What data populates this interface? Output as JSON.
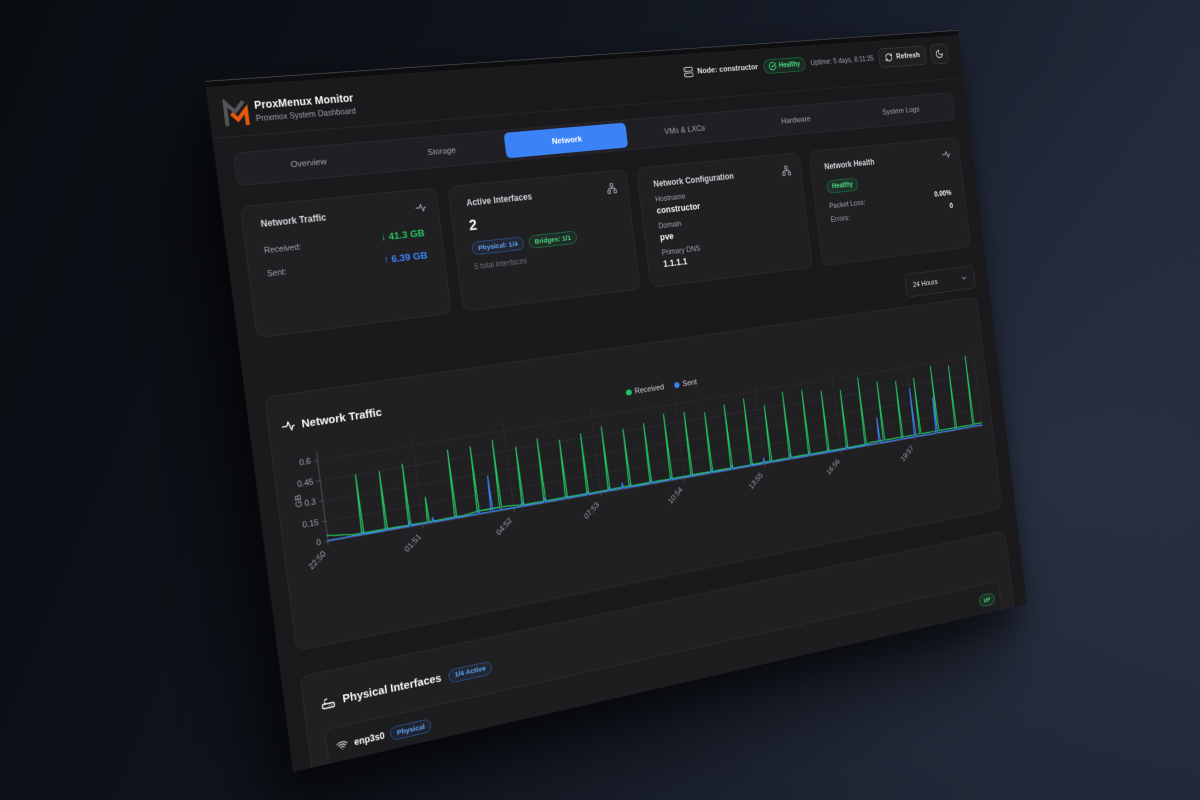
{
  "header": {
    "app_title": "ProxMenux Monitor",
    "subtitle": "Proxmox System Dashboard",
    "node_label": "Node: constructor",
    "health_badge": "Healthy",
    "uptime": "Uptime: 5 days, 6:11:25",
    "refresh_label": "Refresh"
  },
  "tabs": {
    "items": [
      {
        "label": "Overview",
        "active": false
      },
      {
        "label": "Storage",
        "active": false
      },
      {
        "label": "Network",
        "active": true
      },
      {
        "label": "VMs & LXCs",
        "active": false
      },
      {
        "label": "Hardware",
        "active": false
      },
      {
        "label": "System Logs",
        "active": false
      }
    ]
  },
  "cards": {
    "traffic": {
      "title": "Network Traffic",
      "received_label": "Received:",
      "received_value": "41.3 GB",
      "sent_label": "Sent:",
      "sent_value": "6.39 GB"
    },
    "interfaces": {
      "title": "Active Interfaces",
      "count": "2",
      "badges": [
        {
          "label": "Physical: 1/4",
          "color": "blue"
        },
        {
          "label": "Bridges: 1/1",
          "color": "green"
        }
      ],
      "total": "5 total interfaces"
    },
    "config": {
      "title": "Network Configuration",
      "fields": [
        {
          "label": "Hostname",
          "value": "constructor"
        },
        {
          "label": "Domain",
          "value": "pve"
        },
        {
          "label": "Primary DNS",
          "value": "1.1.1.1"
        }
      ]
    },
    "health": {
      "title": "Network Health",
      "status": "Healthy",
      "rows": [
        {
          "label": "Packet Loss:",
          "value": "0.00%"
        },
        {
          "label": "Errors:",
          "value": "0"
        }
      ]
    }
  },
  "toolbar": {
    "range": "24 Hours"
  },
  "chart_data": {
    "type": "line",
    "title": "Network Traffic",
    "ylabel": "GB",
    "yticks": [
      0,
      0.15,
      0.3,
      0.45,
      0.6
    ],
    "ylim": [
      0,
      0.66
    ],
    "xlim": [
      0,
      1438
    ],
    "xtick_minutes": [
      0,
      181,
      362,
      543,
      724,
      905,
      1086,
      1267
    ],
    "xtick_labels": [
      "22:50",
      "01:51",
      "04:52",
      "07:53",
      "10:54",
      "13:55",
      "16:56",
      "19:57"
    ],
    "grid": "dashed",
    "legend_position": "top",
    "series": [
      {
        "name": "Received",
        "color": "#22c55e",
        "points": [
          [
            0,
            0.044
          ],
          [
            16,
            0.034
          ],
          [
            32,
            0.027
          ],
          [
            48,
            0.016
          ],
          [
            64,
            0.015
          ],
          [
            66,
            0.45
          ],
          [
            68,
            0.016
          ],
          [
            82,
            0.015
          ],
          [
            109,
            0.016
          ],
          [
            111,
            0.447
          ],
          [
            113,
            0.015
          ],
          [
            127,
            0.016
          ],
          [
            154,
            0.013
          ],
          [
            156,
            0.474
          ],
          [
            158,
            0.014
          ],
          [
            172,
            0.014
          ],
          [
            190,
            0.013
          ],
          [
            192,
            0.2
          ],
          [
            194,
            0.014
          ],
          [
            208,
            0.013
          ],
          [
            224,
            0.014
          ],
          [
            244,
            0.016
          ],
          [
            246,
            0.523
          ],
          [
            248,
            0.014
          ],
          [
            262,
            0.014
          ],
          [
            289,
            0.026
          ],
          [
            291,
            0.519
          ],
          [
            293,
            0.026
          ],
          [
            307,
            0.029
          ],
          [
            334,
            0.028
          ],
          [
            336,
            0.543
          ],
          [
            338,
            0.027
          ],
          [
            352,
            0.026
          ],
          [
            379,
            0.016
          ],
          [
            381,
            0.464
          ],
          [
            383,
            0.014
          ],
          [
            397,
            0.015
          ],
          [
            424,
            0.017
          ],
          [
            426,
            0.499
          ],
          [
            428,
            0.016
          ],
          [
            442,
            0.015
          ],
          [
            469,
            0.016
          ],
          [
            471,
            0.462
          ],
          [
            473,
            0.016
          ],
          [
            487,
            0.016
          ],
          [
            514,
            0.014
          ],
          [
            516,
            0.483
          ],
          [
            518,
            0.013
          ],
          [
            532,
            0.014
          ],
          [
            559,
            0.014
          ],
          [
            561,
            0.513
          ],
          [
            563,
            0.014
          ],
          [
            577,
            0.017
          ],
          [
            604,
            0.017
          ],
          [
            606,
            0.467
          ],
          [
            608,
            0.014
          ],
          [
            622,
            0.016
          ],
          [
            649,
            0.015
          ],
          [
            651,
            0.486
          ],
          [
            653,
            0.017
          ],
          [
            667,
            0.015
          ],
          [
            694,
            0.014
          ],
          [
            696,
            0.533
          ],
          [
            698,
            0.014
          ],
          [
            712,
            0.015
          ],
          [
            739,
            0.014
          ],
          [
            741,
            0.524
          ],
          [
            743,
            0.015
          ],
          [
            757,
            0.017
          ],
          [
            784,
            0.015
          ],
          [
            786,
            0.493
          ],
          [
            788,
            0.014
          ],
          [
            802,
            0.017
          ],
          [
            829,
            0.015
          ],
          [
            831,
            0.532
          ],
          [
            833,
            0.013
          ],
          [
            847,
            0.013
          ],
          [
            874,
            0.013
          ],
          [
            876,
            0.556
          ],
          [
            878,
            0.016
          ],
          [
            892,
            0.016
          ],
          [
            919,
            0.015
          ],
          [
            921,
            0.477
          ],
          [
            923,
            0.013
          ],
          [
            937,
            0.015
          ],
          [
            964,
            0.017
          ],
          [
            966,
            0.559
          ],
          [
            968,
            0.015
          ],
          [
            982,
            0.017
          ],
          [
            1009,
            0.016
          ],
          [
            1011,
            0.55
          ],
          [
            1013,
            0.013
          ],
          [
            1027,
            0.016
          ],
          [
            1054,
            0.016
          ],
          [
            1056,
            0.516
          ],
          [
            1058,
            0.015
          ],
          [
            1072,
            0.014
          ],
          [
            1099,
            0.016
          ],
          [
            1101,
            0.5
          ],
          [
            1103,
            0.013
          ],
          [
            1117,
            0.015
          ],
          [
            1144,
            0.015
          ],
          [
            1146,
            0.582
          ],
          [
            1148,
            0.017
          ],
          [
            1162,
            0.025
          ],
          [
            1189,
            0.022
          ],
          [
            1191,
            0.521
          ],
          [
            1193,
            0.023
          ],
          [
            1207,
            0.022
          ],
          [
            1234,
            0.025
          ],
          [
            1236,
            0.499
          ],
          [
            1238,
            0.024
          ],
          [
            1252,
            0.022
          ],
          [
            1279,
            0.024
          ],
          [
            1281,
            0.501
          ],
          [
            1283,
            0.023
          ],
          [
            1297,
            0.022
          ],
          [
            1324,
            0.024
          ],
          [
            1326,
            0.578
          ],
          [
            1328,
            0.023
          ],
          [
            1342,
            0.024
          ],
          [
            1369,
            0.023
          ],
          [
            1371,
            0.555
          ],
          [
            1373,
            0.021
          ],
          [
            1387,
            0.022
          ],
          [
            1414,
            0.021
          ],
          [
            1416,
            0.62
          ],
          [
            1418,
            0.025
          ],
          [
            1432,
            0.025
          ],
          [
            1438,
            0.024
          ]
        ]
      },
      {
        "name": "Sent",
        "color": "#3b82f6",
        "points": [
          [
            0,
            0.006
          ],
          [
            16,
            0.005
          ],
          [
            32,
            0.007
          ],
          [
            48,
            0.007
          ],
          [
            64,
            0.005
          ],
          [
            66,
            0.026
          ],
          [
            68,
            0.005
          ],
          [
            82,
            0.006
          ],
          [
            109,
            0.005
          ],
          [
            111,
            0.021
          ],
          [
            113,
            0.005
          ],
          [
            127,
            0.007
          ],
          [
            154,
            0.006
          ],
          [
            156,
            0.038
          ],
          [
            158,
            0.006
          ],
          [
            172,
            0.007
          ],
          [
            199,
            0.007
          ],
          [
            201,
            0.039
          ],
          [
            203,
            0.005
          ],
          [
            217,
            0.005
          ],
          [
            244,
            0.006
          ],
          [
            246,
            0.022
          ],
          [
            248,
            0.006
          ],
          [
            262,
            0.006
          ],
          [
            289,
            0.006
          ],
          [
            291,
            0.03
          ],
          [
            293,
            0.006
          ],
          [
            316,
            0.007
          ],
          [
            318,
            0.28
          ],
          [
            320,
            0.005
          ],
          [
            334,
            0.006
          ],
          [
            336,
            0.021
          ],
          [
            338,
            0.006
          ],
          [
            352,
            0.007
          ],
          [
            379,
            0.005
          ],
          [
            381,
            0.035
          ],
          [
            383,
            0.005
          ],
          [
            397,
            0.006
          ],
          [
            424,
            0.006
          ],
          [
            426,
            0.035
          ],
          [
            428,
            0.006
          ],
          [
            442,
            0.005
          ],
          [
            469,
            0.007
          ],
          [
            471,
            0.023
          ],
          [
            473,
            0.006
          ],
          [
            487,
            0.007
          ],
          [
            514,
            0.006
          ],
          [
            516,
            0.03
          ],
          [
            518,
            0.005
          ],
          [
            532,
            0.007
          ],
          [
            559,
            0.007
          ],
          [
            561,
            0.031
          ],
          [
            563,
            0.007
          ],
          [
            588,
            0.007
          ],
          [
            590,
            0.05
          ],
          [
            592,
            0.007
          ],
          [
            604,
            0.005
          ],
          [
            606,
            0.025
          ],
          [
            608,
            0.006
          ],
          [
            622,
            0.005
          ],
          [
            649,
            0.006
          ],
          [
            651,
            0.037
          ],
          [
            653,
            0.005
          ],
          [
            667,
            0.006
          ],
          [
            694,
            0.007
          ],
          [
            696,
            0.028
          ],
          [
            698,
            0.006
          ],
          [
            712,
            0.007
          ],
          [
            739,
            0.006
          ],
          [
            741,
            0.024
          ],
          [
            743,
            0.006
          ],
          [
            757,
            0.007
          ],
          [
            784,
            0.007
          ],
          [
            786,
            0.031
          ],
          [
            788,
            0.006
          ],
          [
            802,
            0.006
          ],
          [
            829,
            0.005
          ],
          [
            831,
            0.035
          ],
          [
            833,
            0.006
          ],
          [
            847,
            0.007
          ],
          [
            874,
            0.006
          ],
          [
            876,
            0.024
          ],
          [
            878,
            0.006
          ],
          [
            903,
            0.006
          ],
          [
            905,
            0.05
          ],
          [
            907,
            0.005
          ],
          [
            919,
            0.006
          ],
          [
            921,
            0.026
          ],
          [
            923,
            0.006
          ],
          [
            937,
            0.007
          ],
          [
            964,
            0.005
          ],
          [
            966,
            0.04
          ],
          [
            968,
            0.007
          ],
          [
            982,
            0.005
          ],
          [
            1009,
            0.005
          ],
          [
            1011,
            0.033
          ],
          [
            1013,
            0.006
          ],
          [
            1027,
            0.006
          ],
          [
            1054,
            0.005
          ],
          [
            1056,
            0.029
          ],
          [
            1058,
            0.005
          ],
          [
            1072,
            0.007
          ],
          [
            1099,
            0.005
          ],
          [
            1101,
            0.03
          ],
          [
            1103,
            0.006
          ],
          [
            1117,
            0.006
          ],
          [
            1144,
            0.006
          ],
          [
            1146,
            0.022
          ],
          [
            1148,
            0.006
          ],
          [
            1162,
            0.006
          ],
          [
            1178,
            0.007
          ],
          [
            1180,
            0.22
          ],
          [
            1182,
            0.005
          ],
          [
            1196,
            0.006
          ],
          [
            1212,
            0.005
          ],
          [
            1234,
            0.006
          ],
          [
            1236,
            0.027
          ],
          [
            1238,
            0.006
          ],
          [
            1266,
            0.006
          ],
          [
            1268,
            0.42
          ],
          [
            1270,
            0.006
          ],
          [
            1284,
            0.007
          ],
          [
            1300,
            0.005
          ],
          [
            1320,
            0.006
          ],
          [
            1322,
            0.31
          ],
          [
            1324,
            0.007
          ],
          [
            1338,
            0.007
          ],
          [
            1354,
            0.005
          ],
          [
            1369,
            0.005
          ],
          [
            1371,
            0.024
          ],
          [
            1373,
            0.006
          ],
          [
            1387,
            0.007
          ],
          [
            1414,
            0.007
          ],
          [
            1416,
            0.021
          ],
          [
            1418,
            0.007
          ],
          [
            1432,
            0.006
          ],
          [
            1438,
            0.005
          ]
        ]
      }
    ]
  },
  "physical": {
    "title": "Physical Interfaces",
    "active_badge": "1/4 Active",
    "rows": [
      {
        "name": "enp3s0",
        "type_badge": "Physical",
        "status": "UP"
      }
    ]
  },
  "colors": {
    "accent_blue": "#3b82f6",
    "green": "#22c55e",
    "bg_panel": "#1a1a1d",
    "card": "#202023",
    "orange_logo": "#e8590c"
  }
}
